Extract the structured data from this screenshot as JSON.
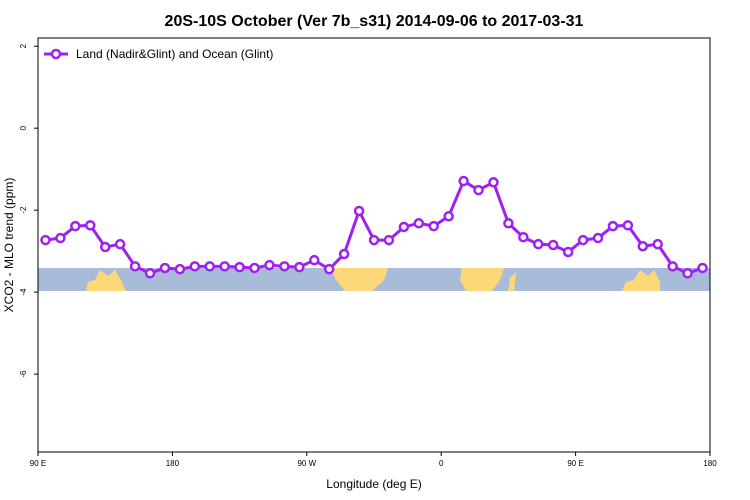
{
  "chart_data": {
    "type": "line",
    "title": "20S-10S October (Ver 7b_s31)   2014-09-06 to 2017-03-31",
    "x_label": "Longitude (deg E)",
    "y_label": "XCO2 - MLO trend (ppm)",
    "xlim": [
      90,
      540
    ],
    "ylim": [
      -7.9,
      2.2
    ],
    "xticks": [
      {
        "value": 90,
        "label": "90 E"
      },
      180,
      {
        "value": 270,
        "label": "90 W"
      },
      {
        "value": 360,
        "label": "0"
      },
      {
        "value": 450,
        "label": "90 E"
      },
      {
        "value": 540,
        "label": "180"
      }
    ],
    "yticks": [
      2,
      0,
      -2,
      -4,
      -6
    ],
    "legend": "top-left",
    "x": [
      95,
      105,
      115,
      125,
      135,
      145,
      155,
      165,
      175,
      185,
      195,
      205,
      215,
      225,
      235,
      245,
      255,
      265,
      275,
      285,
      295,
      305,
      315,
      325,
      335,
      345,
      355,
      365,
      375,
      385,
      395,
      405,
      415,
      425,
      435,
      445,
      455,
      465,
      475,
      485,
      495,
      505,
      515,
      525,
      535
    ],
    "series": [
      {
        "name": "Land (Nadir&Glint) and Ocean (Glint)",
        "color": "#a020f0",
        "values": [
          -2.73,
          -2.68,
          -2.39,
          -2.37,
          -2.9,
          -2.83,
          -3.37,
          -3.54,
          -3.41,
          -3.44,
          -3.37,
          -3.37,
          -3.37,
          -3.39,
          -3.41,
          -3.34,
          -3.37,
          -3.39,
          -3.22,
          -3.44,
          -3.07,
          -2.02,
          -2.73,
          -2.73,
          -2.41,
          -2.32,
          -2.39,
          -2.15,
          -1.29,
          -1.51,
          -1.32,
          -2.32,
          -2.66,
          -2.83,
          -2.85,
          -3.02,
          -2.73,
          -2.68,
          -2.39,
          -2.37,
          -2.88,
          -2.83,
          -3.37,
          -3.54,
          -3.41
        ]
      }
    ]
  }
}
